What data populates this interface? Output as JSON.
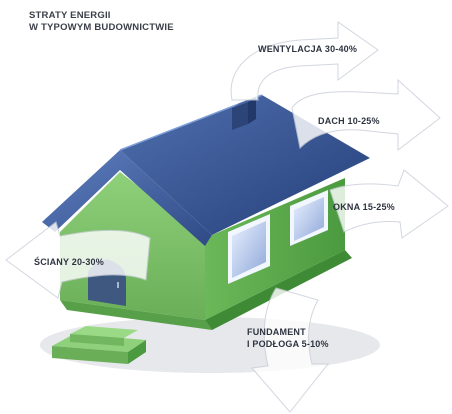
{
  "title": {
    "line1": "STRATY ENERGII",
    "line2": "W TYPOWYM BUDOWNICTWIE"
  },
  "labels": {
    "wentylacja": "WENTYLACJA 30-40%",
    "dach": "DACH 10-25%",
    "okna": "OKNA 15-25%",
    "sciany": "ŚCIANY 20-30%",
    "fundament_line1": "FUNDAMENT",
    "fundament_line2": "I PODŁOGA 5-10%"
  },
  "colors": {
    "roof": "#3f5f9f",
    "wall_front": "#7fbf6a",
    "wall_side": "#5aa34a",
    "door": "#3e5880",
    "arrow": "#ffffff"
  }
}
